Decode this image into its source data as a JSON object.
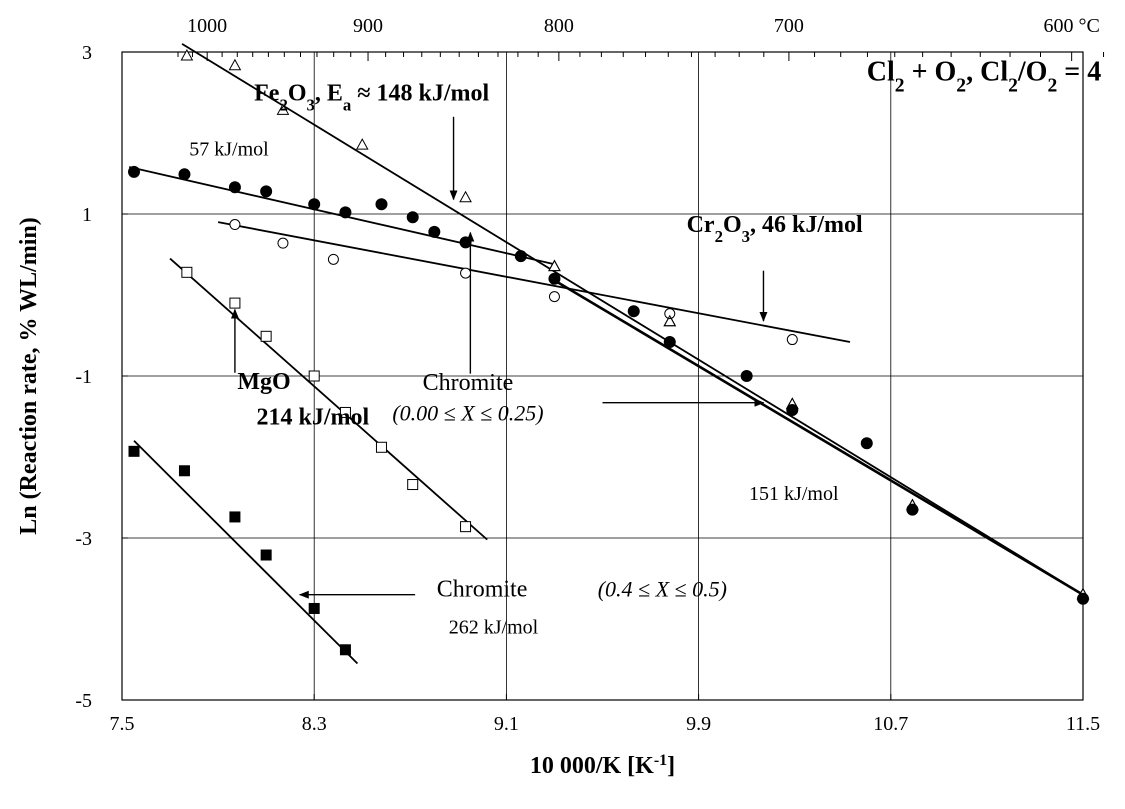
{
  "chart_data": {
    "type": "scatter",
    "title": "Cl₂ + O₂, Cl₂/O₂ = 4",
    "xlabel": "10 000/K [K⁻¹]",
    "ylabel": "Ln (Reaction rate, % WL/min)",
    "xlim": [
      7.5,
      11.5
    ],
    "ylim": [
      -5,
      3
    ],
    "x_ticks": [
      7.5,
      8.3,
      9.1,
      9.9,
      10.7,
      11.5
    ],
    "x_tick_labels": [
      "7.5",
      "8.3",
      "9.1",
      "9.9",
      "10.7",
      "11.5"
    ],
    "y_ticks": [
      -5,
      -3,
      -1,
      1,
      3
    ],
    "y_tick_labels": [
      "-5",
      "-3",
      "-1",
      "1",
      "3"
    ],
    "top_axis": {
      "unit": "°C",
      "ticks": [
        1000,
        900,
        800,
        700,
        600
      ],
      "tick_labels": [
        "1000",
        "900",
        "800",
        "700",
        "600 °C"
      ]
    },
    "grid": true,
    "series": [
      {
        "name": "Fe₂O₃",
        "marker": "open-triangle",
        "points": [
          [
            7.77,
            2.95
          ],
          [
            7.97,
            2.83
          ],
          [
            8.17,
            2.28
          ],
          [
            8.5,
            1.85
          ],
          [
            8.93,
            1.2
          ],
          [
            9.3,
            0.35
          ],
          [
            9.78,
            -0.33
          ],
          [
            10.29,
            -1.35
          ],
          [
            10.79,
            -2.6
          ],
          [
            11.5,
            -3.7
          ]
        ],
        "fit": [
          [
            7.75,
            3.1
          ],
          [
            11.5,
            -3.7
          ]
        ]
      },
      {
        "name": "Chromite (0.00 ≤ X ≤ 0.25)",
        "marker": "filled-circle",
        "points": [
          [
            7.55,
            1.52
          ],
          [
            7.76,
            1.49
          ],
          [
            7.97,
            1.33
          ],
          [
            8.1,
            1.28
          ],
          [
            8.3,
            1.12
          ],
          [
            8.43,
            1.02
          ],
          [
            8.58,
            1.12
          ],
          [
            8.71,
            0.96
          ],
          [
            8.8,
            0.78
          ],
          [
            8.93,
            0.65
          ],
          [
            9.16,
            0.48
          ],
          [
            9.3,
            0.2
          ],
          [
            9.63,
            -0.2
          ],
          [
            9.78,
            -0.58
          ],
          [
            10.1,
            -1.0
          ],
          [
            10.29,
            -1.42
          ],
          [
            10.6,
            -1.83
          ],
          [
            10.79,
            -2.65
          ],
          [
            11.5,
            -3.75
          ]
        ],
        "fit": [
          [
            7.53,
            1.58
          ],
          [
            9.3,
            0.38
          ]
        ],
        "fit2": [
          [
            9.3,
            0.18
          ],
          [
            11.5,
            -3.7
          ]
        ]
      },
      {
        "name": "Cr₂O₃",
        "marker": "open-circle",
        "points": [
          [
            7.97,
            0.87
          ],
          [
            8.17,
            0.64
          ],
          [
            8.38,
            0.44
          ],
          [
            8.93,
            0.27
          ],
          [
            9.3,
            -0.02
          ],
          [
            9.78,
            -0.23
          ],
          [
            10.29,
            -0.55
          ]
        ],
        "fit": [
          [
            7.9,
            0.9
          ],
          [
            10.53,
            -0.58
          ]
        ]
      },
      {
        "name": "MgO",
        "marker": "open-square",
        "points": [
          [
            7.77,
            0.28
          ],
          [
            7.97,
            -0.1
          ],
          [
            8.1,
            -0.51
          ],
          [
            8.3,
            -1.0
          ],
          [
            8.43,
            -1.45
          ],
          [
            8.58,
            -1.88
          ],
          [
            8.71,
            -2.34
          ],
          [
            8.93,
            -2.86
          ]
        ],
        "fit": [
          [
            7.7,
            0.45
          ],
          [
            9.02,
            -3.02
          ]
        ]
      },
      {
        "name": "Chromite (0.4 ≤ X ≤ 0.5)",
        "marker": "filled-square",
        "points": [
          [
            7.55,
            -1.93
          ],
          [
            7.76,
            -2.17
          ],
          [
            7.97,
            -2.74
          ],
          [
            8.1,
            -3.21
          ],
          [
            8.3,
            -3.87
          ],
          [
            8.43,
            -4.38
          ]
        ],
        "fit": [
          [
            7.55,
            -1.8
          ],
          [
            8.48,
            -4.55
          ]
        ]
      }
    ],
    "annotations": [
      {
        "text": "Cl₂ + O₂, Cl₂/O₂ = 4",
        "x": 10.6,
        "y": 2.65,
        "weight": "bold"
      },
      {
        "text": "Fe₂O₃, Eₐ ≈ 148 kJ/mol",
        "x": 8.05,
        "y": 2.4,
        "weight": "bold"
      },
      {
        "text": "57 kJ/mol",
        "x": 7.78,
        "y": 1.72
      },
      {
        "text": "Cr₂O₃, 46 kJ/mol",
        "x": 9.85,
        "y": 0.78,
        "weight": "bold"
      },
      {
        "text": "MgO",
        "x": 7.98,
        "y": -1.16,
        "weight": "bold"
      },
      {
        "text": "214 kJ/mol",
        "x": 8.06,
        "y": -1.6,
        "weight": "bold"
      },
      {
        "text": "Chromite",
        "x": 8.94,
        "y": -1.17
      },
      {
        "text": "(0.00 ≤ X ≤ 0.25)",
        "x": 8.94,
        "y": -1.55,
        "style": "italic"
      },
      {
        "text": "151 kJ/mol",
        "x": 10.11,
        "y": -2.53
      },
      {
        "text": "Chromite",
        "x": 8.81,
        "y": -3.72
      },
      {
        "text": "(0.4 ≤ X ≤ 0.5)",
        "x": 9.48,
        "y": -3.72,
        "style": "italic"
      },
      {
        "text": "262 kJ/mol",
        "x": 8.86,
        "y": -4.18
      }
    ],
    "arrows": [
      {
        "from": [
          8.88,
          2.2
        ],
        "to": [
          8.88,
          1.18
        ]
      },
      {
        "from": [
          10.17,
          0.3
        ],
        "to": [
          10.17,
          -0.32
        ]
      },
      {
        "from": [
          8.95,
          -0.97
        ],
        "to": [
          8.95,
          0.77
        ]
      },
      {
        "from": [
          9.5,
          -1.33
        ],
        "to": [
          10.17,
          -1.33
        ]
      },
      {
        "from": [
          7.97,
          -0.96
        ],
        "to": [
          7.97,
          -0.18
        ]
      },
      {
        "from": [
          8.72,
          -3.7
        ],
        "to": [
          8.24,
          -3.7
        ]
      }
    ]
  }
}
